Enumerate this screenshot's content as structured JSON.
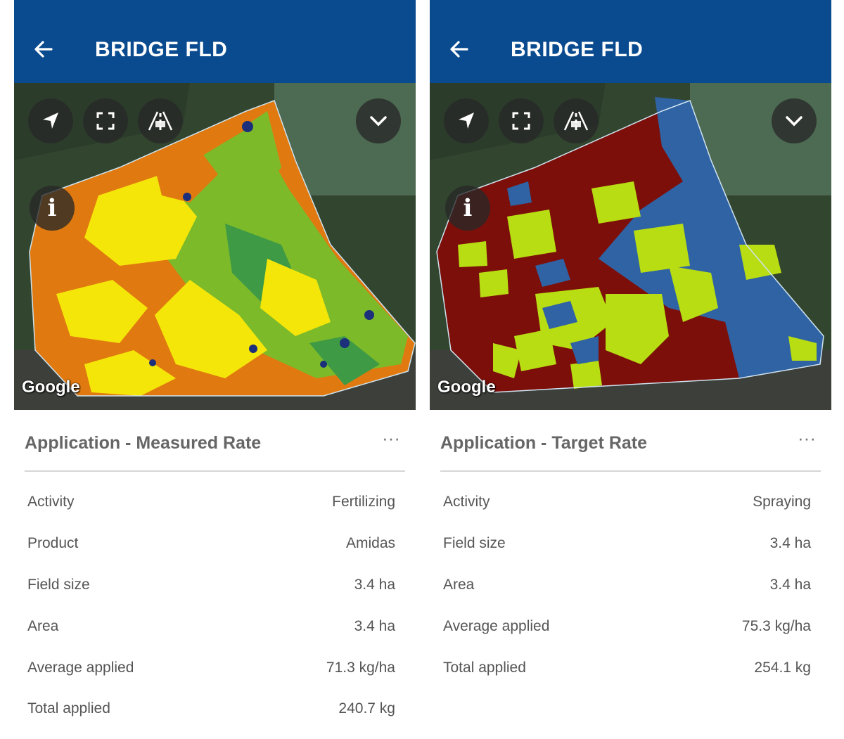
{
  "panels": [
    {
      "title": "BRIDGE FLD",
      "map_attribution": "Google",
      "section_title": "Application - Measured Rate",
      "more_label": "···",
      "rows": [
        {
          "label": "Activity",
          "value": "Fertilizing"
        },
        {
          "label": "Product",
          "value": "Amidas"
        },
        {
          "label": "Field size",
          "value": "3.4 ha"
        },
        {
          "label": "Area",
          "value": "3.4 ha"
        },
        {
          "label": "Average applied",
          "value": "71.3 kg/ha"
        },
        {
          "label": "Total applied",
          "value": "240.7 kg"
        }
      ],
      "map_colors": [
        "#e07a10",
        "#f5e60a",
        "#7cba2a",
        "#3e9a45",
        "#1b2f7a"
      ]
    },
    {
      "title": "BRIDGE FLD",
      "map_attribution": "Google",
      "section_title": "Application - Target Rate",
      "more_label": "···",
      "rows": [
        {
          "label": "Activity",
          "value": "Spraying"
        },
        {
          "label": "Field size",
          "value": "3.4 ha"
        },
        {
          "label": "Area",
          "value": "3.4 ha"
        },
        {
          "label": "Average applied",
          "value": "75.3 kg/ha"
        },
        {
          "label": "Total applied",
          "value": "254.1 kg"
        }
      ],
      "map_colors": [
        "#7d0f0a",
        "#b8dd12",
        "#2f63a4"
      ]
    }
  ],
  "theme": {
    "appbar": "#0a4b8f",
    "text": "#555555",
    "title_text": "#666666"
  }
}
